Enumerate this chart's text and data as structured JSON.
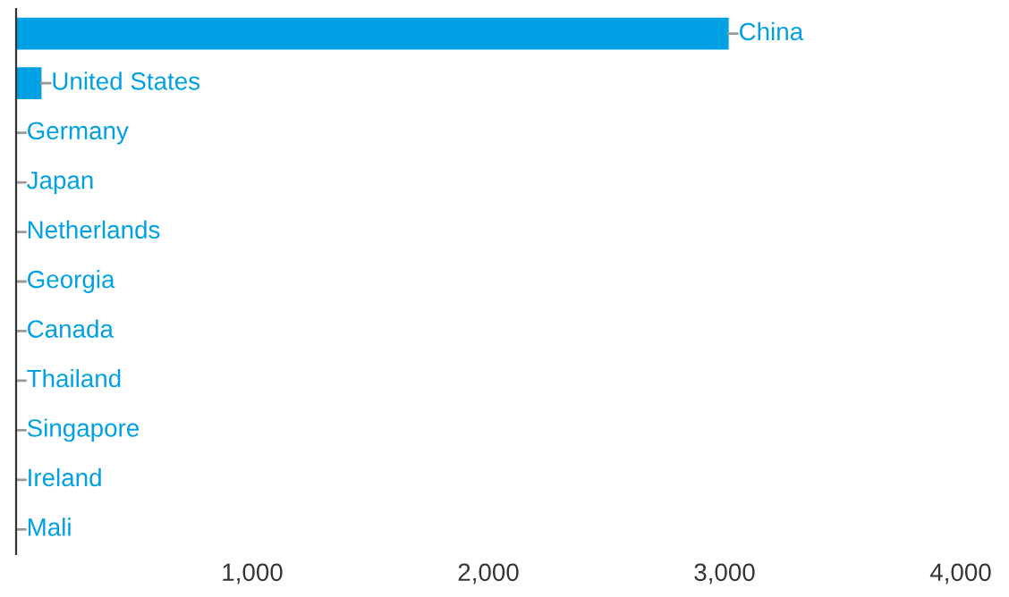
{
  "chart_data": {
    "type": "bar",
    "orientation": "horizontal",
    "categories": [
      "China",
      "United States",
      "Germany",
      "Japan",
      "Netherlands",
      "Georgia",
      "Canada",
      "Thailand",
      "Singapore",
      "Ireland",
      "Mali"
    ],
    "values": [
      3015,
      105,
      0,
      0,
      0,
      0,
      0,
      0,
      0,
      0,
      0
    ],
    "color": "#00a0e4",
    "xlim": [
      0,
      4000
    ],
    "xticks": [
      {
        "value": 1000,
        "label": "1,000"
      },
      {
        "value": 2000,
        "label": "2,000"
      },
      {
        "value": 3000,
        "label": "3,000"
      },
      {
        "value": 4000,
        "label": "4,000"
      }
    ],
    "tick_labels": "x",
    "grid": false,
    "legend": false
  }
}
